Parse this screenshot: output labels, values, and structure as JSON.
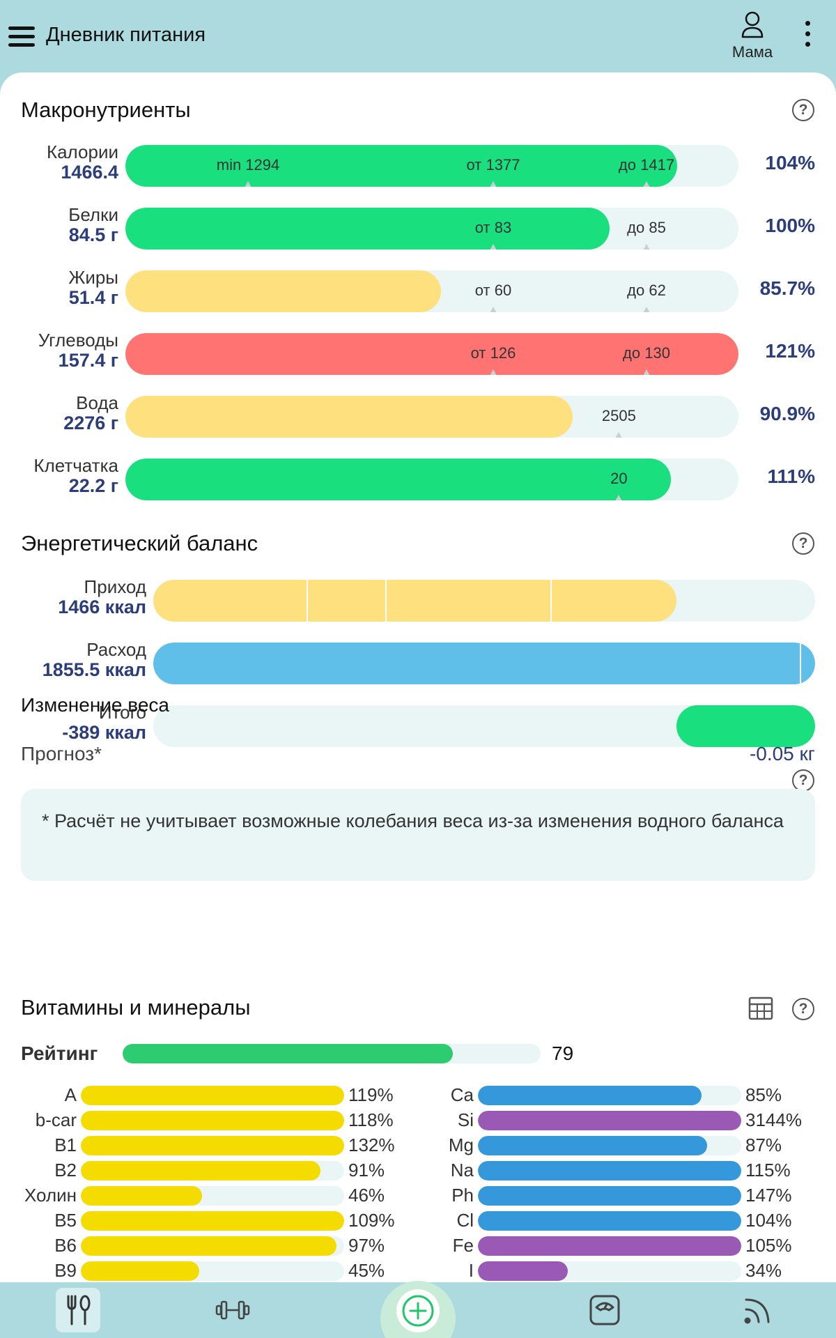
{
  "header": {
    "title": "Дневник питания",
    "profile_name": "Мама"
  },
  "macros": {
    "title": "Макронутриенты",
    "rows": [
      {
        "name": "Калории",
        "value": "1466.4",
        "percent": "104%",
        "fill": 0.9,
        "color": "#1adf7f",
        "markers": [
          {
            "label": "min 1294",
            "pos": 0.2
          },
          {
            "label": "от 1377",
            "pos": 0.6
          },
          {
            "label": "до 1417",
            "pos": 0.85
          }
        ]
      },
      {
        "name": "Белки",
        "value": "84.5 г",
        "percent": "100%",
        "fill": 0.79,
        "color": "#1adf7f",
        "markers": [
          {
            "label": "от 83",
            "pos": 0.6
          },
          {
            "label": "до 85",
            "pos": 0.85
          }
        ]
      },
      {
        "name": "Жиры",
        "value": "51.4 г",
        "percent": "85.7%",
        "fill": 0.515,
        "color": "#ffe07f",
        "markers": [
          {
            "label": "от 60",
            "pos": 0.6
          },
          {
            "label": "до 62",
            "pos": 0.85
          }
        ]
      },
      {
        "name": "Углеводы",
        "value": "157.4 г",
        "percent": "121%",
        "fill": 1.0,
        "color": "#ff7373",
        "markers": [
          {
            "label": "от 126",
            "pos": 0.6
          },
          {
            "label": "до 130",
            "pos": 0.85
          }
        ]
      },
      {
        "name": "Вода",
        "value": "2276 г",
        "percent": "90.9%",
        "fill": 0.73,
        "color": "#ffe07f",
        "markers": [
          {
            "label": "2505",
            "pos": 0.805
          }
        ]
      },
      {
        "name": "Клетчатка",
        "value": "22.2 г",
        "percent": "111%",
        "fill": 0.89,
        "color": "#1adf7f",
        "markers": [
          {
            "label": "20",
            "pos": 0.805
          }
        ]
      }
    ]
  },
  "energy": {
    "title": "Энергетический баланс",
    "rows": [
      {
        "name": "Приход",
        "value": "1466 ккал",
        "fill": 0.79,
        "color": "#ffe07f",
        "segments": [
          0.232,
          0.35,
          0.6
        ]
      },
      {
        "name": "Расход",
        "value": "1855.5 ккал",
        "fill": 1.0,
        "color": "#5fbfe8",
        "segments": [
          0.977
        ]
      },
      {
        "name": "Итого",
        "value": "-389 ккал",
        "fill_from": 0.79,
        "fill": 1.0,
        "color": "#1adf7f",
        "segments": []
      }
    ]
  },
  "weight": {
    "title": "Изменение веса",
    "forecast_label": "Прогноз*",
    "forecast_value": "-0.05 кг",
    "note": "* Расчёт не учитывает возможные колебания веса из-за изменения водного баланса"
  },
  "vitamins": {
    "title": "Витамины и минералы",
    "rating_label": "Рейтинг",
    "rating_value": "79",
    "rating_fill": 0.79,
    "left": [
      {
        "name": "A",
        "percent": "119%",
        "fill": 1.0,
        "color": "#f5dc00"
      },
      {
        "name": "b-car",
        "percent": "118%",
        "fill": 1.0,
        "color": "#f5dc00"
      },
      {
        "name": "B1",
        "percent": "132%",
        "fill": 1.0,
        "color": "#f5dc00"
      },
      {
        "name": "B2",
        "percent": "91%",
        "fill": 0.91,
        "color": "#f5dc00"
      },
      {
        "name": "Холин",
        "percent": "46%",
        "fill": 0.46,
        "color": "#f5dc00"
      },
      {
        "name": "B5",
        "percent": "109%",
        "fill": 1.0,
        "color": "#f5dc00"
      },
      {
        "name": "B6",
        "percent": "97%",
        "fill": 0.97,
        "color": "#f5dc00"
      },
      {
        "name": "B9",
        "percent": "45%",
        "fill": 0.45,
        "color": "#f5dc00"
      }
    ],
    "right": [
      {
        "name": "Ca",
        "percent": "85%",
        "fill": 0.85,
        "color": "#3498db"
      },
      {
        "name": "Si",
        "percent": "3144%",
        "fill": 1.0,
        "color": "#9b59b6"
      },
      {
        "name": "Mg",
        "percent": "87%",
        "fill": 0.87,
        "color": "#3498db"
      },
      {
        "name": "Na",
        "percent": "115%",
        "fill": 1.0,
        "color": "#3498db"
      },
      {
        "name": "Ph",
        "percent": "147%",
        "fill": 1.0,
        "color": "#3498db"
      },
      {
        "name": "Cl",
        "percent": "104%",
        "fill": 1.0,
        "color": "#3498db"
      },
      {
        "name": "Fe",
        "percent": "105%",
        "fill": 1.0,
        "color": "#9b59b6"
      },
      {
        "name": "I",
        "percent": "34%",
        "fill": 0.34,
        "color": "#9b59b6"
      }
    ]
  },
  "bottom_nav": [
    {
      "icon": "fork-spoon-icon",
      "active": true
    },
    {
      "icon": "dumbbell-icon",
      "active": false
    },
    {
      "icon": "add-circle-icon",
      "active": false
    },
    {
      "icon": "scale-icon",
      "active": false
    },
    {
      "icon": "feed-icon",
      "active": false
    }
  ]
}
